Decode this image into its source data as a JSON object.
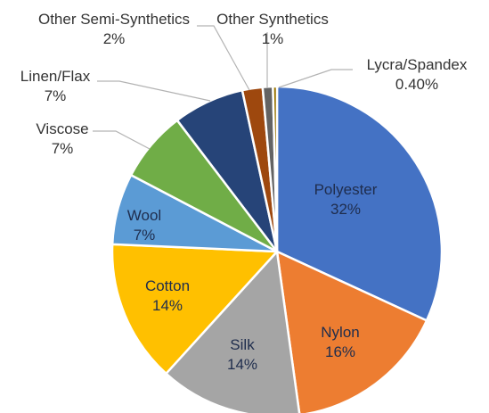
{
  "chart_data": {
    "type": "pie",
    "slices": [
      {
        "name": "Polyester",
        "value": 32,
        "label": "32%",
        "color": "#4472c4"
      },
      {
        "name": "Nylon",
        "value": 16,
        "label": "16%",
        "color": "#ed7d31"
      },
      {
        "name": "Silk",
        "value": 14,
        "label": "14%",
        "color": "#a5a5a5"
      },
      {
        "name": "Cotton",
        "value": 14,
        "label": "14%",
        "color": "#ffc000"
      },
      {
        "name": "Wool",
        "value": 7,
        "label": "7%",
        "color": "#5b9bd5"
      },
      {
        "name": "Viscose",
        "value": 7,
        "label": "7%",
        "color": "#70ad47"
      },
      {
        "name": "Linen/Flax",
        "value": 7,
        "label": "7%",
        "color": "#264478"
      },
      {
        "name": "Other Semi-Synthetics",
        "value": 2,
        "label": "2%",
        "color": "#9e480e"
      },
      {
        "name": "Other Synthetics",
        "value": 1,
        "label": "1%",
        "color": "#636363"
      },
      {
        "name": "Lycra/Spandex",
        "value": 0.4,
        "label": "0.40%",
        "color": "#997300"
      }
    ],
    "start_angle": "12 o'clock",
    "direction": "clockwise",
    "title": "",
    "legend": "none (data labels with category name and percentage)"
  }
}
